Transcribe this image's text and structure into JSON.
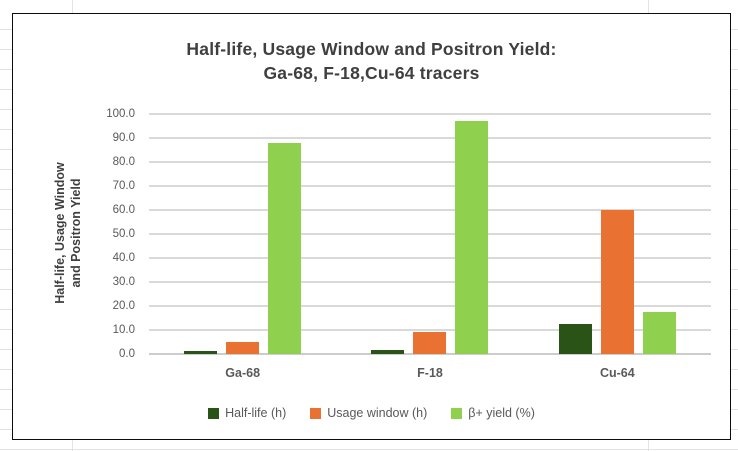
{
  "chart_data": {
    "type": "bar",
    "title_line1": "Half-life, Usage Window and Positron Yield:",
    "title_line2": "Ga-68, F-18,Cu-64 tracers",
    "y_axis_title_line1": "Half-life, Usage Window",
    "y_axis_title_line2": "and Positron Yield",
    "categories": [
      "Ga-68",
      "F-18",
      "Cu-64"
    ],
    "series": [
      {
        "name": "Half-life (h)",
        "color": "#2a5417",
        "values": [
          1.1,
          1.8,
          12.7
        ]
      },
      {
        "name": "Usage window (h)",
        "color": "#e97132",
        "values": [
          5.0,
          9.0,
          60.0
        ]
      },
      {
        "name": "β+ yield (%)",
        "color": "#8fd14f",
        "values": [
          88.0,
          97.0,
          17.5
        ]
      }
    ],
    "ylim": [
      0,
      100
    ],
    "ytick_labels": [
      "0.0",
      "10.0",
      "20.0",
      "30.0",
      "40.0",
      "50.0",
      "60.0",
      "70.0",
      "80.0",
      "90.0",
      "100.0"
    ],
    "grid": true,
    "legend_position": "bottom"
  },
  "colors": {
    "plot_gridline": "#d9d9d9",
    "axis_line": "#cccccc",
    "title_text": "#3f3f3f",
    "label_text": "#595959",
    "chart_border": "#0d0d0d",
    "sheet_gridline": "#e3e3e3"
  }
}
